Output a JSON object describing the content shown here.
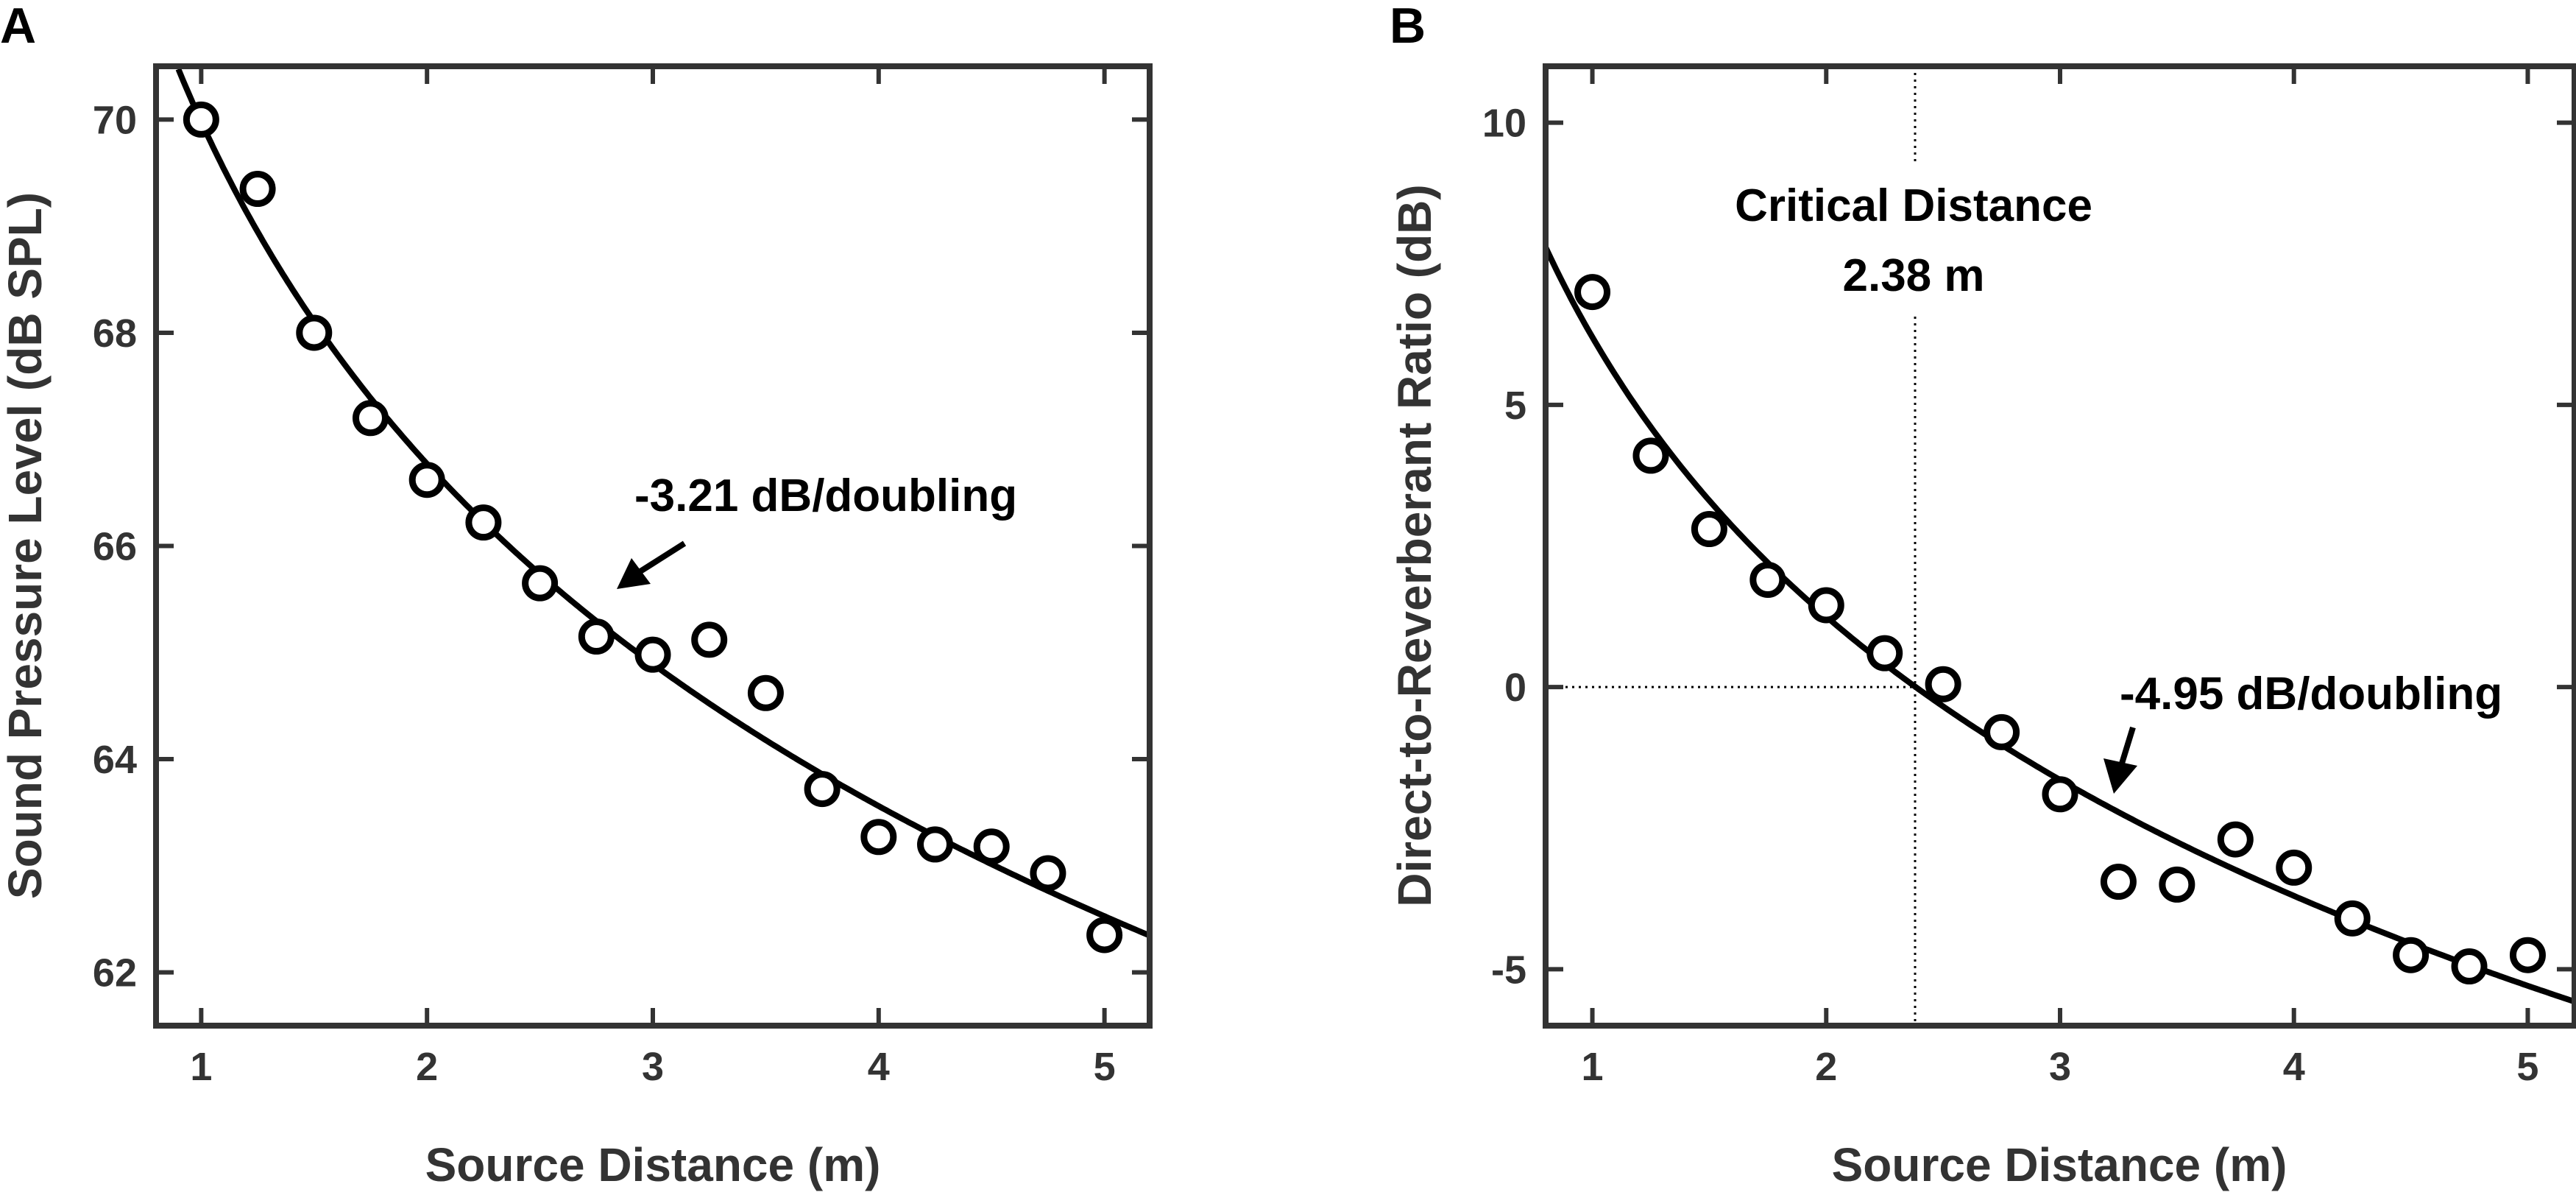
{
  "chart_data": [
    {
      "panel": "A",
      "type": "scatter",
      "xlabel": "Source Distance (m)",
      "ylabel": "Sound Pressure Level (dB SPL)",
      "xlim": [
        0.8,
        5.2
      ],
      "ylim": [
        61.5,
        70.5
      ],
      "xticks": [
        1,
        2,
        3,
        4,
        5
      ],
      "yticks": [
        62,
        64,
        66,
        68,
        70
      ],
      "series": [
        {
          "name": "measured",
          "marker": "open-circle",
          "x": [
            1.0,
            1.25,
            1.5,
            1.75,
            2.0,
            2.25,
            2.5,
            2.75,
            3.0,
            3.25,
            3.5,
            3.75,
            4.0,
            4.25,
            4.5,
            4.75,
            5.0
          ],
          "y": [
            70.0,
            69.35,
            68.0,
            67.2,
            66.62,
            66.22,
            65.65,
            65.15,
            64.98,
            65.12,
            64.62,
            63.72,
            63.27,
            63.2,
            63.18,
            62.93,
            62.35
          ]
        },
        {
          "name": "fit",
          "style": "line",
          "model": "log2",
          "y_at_1m": 69.98,
          "slope_per_doubling": -3.21
        }
      ],
      "annotations": [
        {
          "text": "-3.21 dB/doubling",
          "arrow_to": [
            2.75,
            65.5
          ]
        }
      ]
    },
    {
      "panel": "B",
      "type": "scatter",
      "xlabel": "Source Distance (m)",
      "ylabel": "Direct-to-Reverberant Ratio (dB)",
      "xlim": [
        0.8,
        5.2
      ],
      "ylim": [
        -6,
        11
      ],
      "xticks": [
        1,
        2,
        3,
        4,
        5
      ],
      "yticks": [
        -5,
        0,
        5,
        10
      ],
      "series": [
        {
          "name": "measured",
          "marker": "open-circle",
          "x": [
            1.0,
            1.25,
            1.5,
            1.75,
            2.0,
            2.25,
            2.5,
            2.75,
            3.0,
            3.25,
            3.5,
            3.75,
            4.0,
            4.25,
            4.5,
            4.75,
            5.0
          ],
          "y": [
            7.0,
            4.1,
            2.8,
            1.9,
            1.45,
            0.6,
            0.05,
            -0.8,
            -1.9,
            -3.45,
            -3.5,
            -2.7,
            -3.2,
            -4.1,
            -4.75,
            -4.95,
            -4.75
          ]
        },
        {
          "name": "fit",
          "style": "line",
          "model": "log2",
          "y_at_1m": 6.2,
          "slope_per_doubling": -4.95
        }
      ],
      "critical_distance": {
        "x": 2.38,
        "y": 0
      },
      "annotations": [
        {
          "text": "Critical Distance",
          "line2": "2.38 m"
        },
        {
          "text": "-4.95 dB/doubling",
          "arrow_to": [
            3.22,
            -2.1
          ]
        }
      ]
    }
  ]
}
